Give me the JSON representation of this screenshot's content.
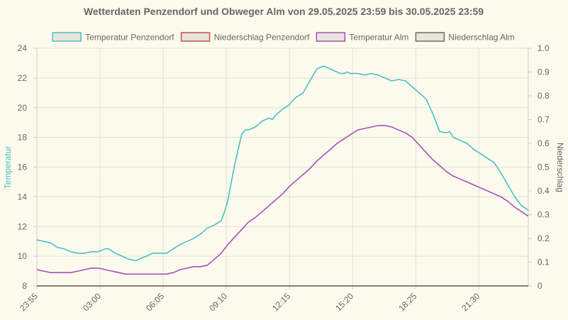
{
  "chart_data": {
    "type": "line",
    "title": "Wetterdaten Penzendorf und Obweger Alm von 29.05.2025 23:59 bis 30.05.2025 23:59",
    "ylabel_left": "Temperatur",
    "ylabel_right": "Niederschlag",
    "ylim_left": [
      8,
      24
    ],
    "yticks_left": [
      "8",
      "10",
      "12",
      "14",
      "16",
      "18",
      "20",
      "22",
      "24"
    ],
    "ylim_right": [
      0,
      1
    ],
    "yticks_right": [
      "0",
      "0.1",
      "0.2",
      "0.3",
      "0.4",
      "0.5",
      "0.6",
      "0.7",
      "0.8",
      "0.9",
      "1.0"
    ],
    "x_unit": "minutes",
    "xlim": [
      0,
      1440
    ],
    "xticks": [
      {
        "x": 0,
        "label": "23:55"
      },
      {
        "x": 185,
        "label": "03:00"
      },
      {
        "x": 370,
        "label": "06:05"
      },
      {
        "x": 555,
        "label": "09:10"
      },
      {
        "x": 740,
        "label": "12:15"
      },
      {
        "x": 925,
        "label": "15:20"
      },
      {
        "x": 1110,
        "label": "18:25"
      },
      {
        "x": 1295,
        "label": "21:30"
      }
    ],
    "legend_position": "top",
    "grid": true,
    "series": [
      {
        "name": "Temperatur Penzendorf",
        "axis": "left",
        "color": "#4bbfc4",
        "fill": "#e8e5dc",
        "x": [
          0,
          20,
          40,
          60,
          80,
          100,
          120,
          140,
          160,
          180,
          200,
          210,
          230,
          250,
          270,
          290,
          310,
          320,
          340,
          360,
          380,
          400,
          420,
          440,
          460,
          480,
          500,
          520,
          540,
          550,
          560,
          570,
          580,
          590,
          600,
          610,
          620,
          630,
          640,
          650,
          660,
          670,
          680,
          690,
          700,
          720,
          740,
          750,
          760,
          780,
          800,
          820,
          840,
          860,
          870,
          880,
          890,
          900,
          910,
          920,
          940,
          960,
          980,
          1000,
          1020,
          1040,
          1060,
          1080,
          1100,
          1120,
          1140,
          1160,
          1180,
          1200,
          1210,
          1220,
          1240,
          1260,
          1280,
          1300,
          1320,
          1340,
          1360,
          1380,
          1400,
          1420,
          1440
        ],
        "y": [
          11.1,
          11.0,
          10.9,
          10.6,
          10.5,
          10.3,
          10.2,
          10.2,
          10.3,
          10.3,
          10.5,
          10.5,
          10.2,
          10.0,
          9.8,
          9.7,
          9.9,
          10.0,
          10.2,
          10.2,
          10.2,
          10.5,
          10.8,
          11.0,
          11.2,
          11.5,
          11.9,
          12.1,
          12.4,
          13.0,
          13.8,
          15.0,
          16.2,
          17.2,
          18.2,
          18.5,
          18.5,
          18.6,
          18.7,
          18.9,
          19.1,
          19.2,
          19.3,
          19.2,
          19.5,
          19.9,
          20.2,
          20.5,
          20.7,
          21.0,
          21.8,
          22.6,
          22.8,
          22.6,
          22.5,
          22.4,
          22.3,
          22.3,
          22.4,
          22.3,
          22.3,
          22.2,
          22.3,
          22.2,
          22.0,
          21.8,
          21.9,
          21.8,
          21.4,
          21.0,
          20.6,
          19.6,
          18.4,
          18.3,
          18.4,
          18.0,
          17.8,
          17.6,
          17.2,
          16.9,
          16.6,
          16.3,
          15.6,
          14.8,
          14.0,
          13.4,
          13.1
        ]
      },
      {
        "name": "Niederschlag Penzendorf",
        "axis": "right",
        "color": "#c0504d",
        "fill": "#e8e5dc",
        "x": [
          0,
          1440
        ],
        "y": [
          0,
          0
        ]
      },
      {
        "name": "Temperatur Alm",
        "axis": "left",
        "color": "#a64fbc",
        "fill": "#e8e5dc",
        "x": [
          0,
          20,
          40,
          60,
          80,
          100,
          120,
          140,
          160,
          180,
          200,
          220,
          240,
          260,
          280,
          300,
          320,
          340,
          360,
          380,
          400,
          420,
          440,
          460,
          480,
          500,
          520,
          540,
          560,
          580,
          600,
          620,
          640,
          660,
          680,
          700,
          720,
          740,
          760,
          780,
          800,
          820,
          840,
          860,
          880,
          900,
          920,
          940,
          960,
          980,
          1000,
          1020,
          1040,
          1060,
          1080,
          1100,
          1120,
          1140,
          1160,
          1180,
          1200,
          1220,
          1240,
          1260,
          1280,
          1300,
          1320,
          1340,
          1360,
          1380,
          1400,
          1420,
          1440
        ],
        "y": [
          9.1,
          9.0,
          8.9,
          8.9,
          8.9,
          8.9,
          9.0,
          9.1,
          9.2,
          9.2,
          9.1,
          9.0,
          8.9,
          8.8,
          8.8,
          8.8,
          8.8,
          8.8,
          8.8,
          8.8,
          8.9,
          9.1,
          9.2,
          9.3,
          9.3,
          9.4,
          9.8,
          10.2,
          10.8,
          11.3,
          11.8,
          12.3,
          12.6,
          13.0,
          13.4,
          13.8,
          14.2,
          14.7,
          15.1,
          15.5,
          15.9,
          16.4,
          16.8,
          17.2,
          17.6,
          17.9,
          18.2,
          18.5,
          18.6,
          18.7,
          18.8,
          18.8,
          18.7,
          18.5,
          18.3,
          18.0,
          17.5,
          17.0,
          16.5,
          16.1,
          15.7,
          15.4,
          15.2,
          15.0,
          14.8,
          14.6,
          14.4,
          14.2,
          14.0,
          13.7,
          13.3,
          13.0,
          12.7
        ]
      },
      {
        "name": "Niederschlag Alm",
        "axis": "right",
        "color": "#6b6f60",
        "fill": "#e8e5dc",
        "x": [
          0,
          1440
        ],
        "y": [
          0,
          0
        ]
      }
    ]
  }
}
